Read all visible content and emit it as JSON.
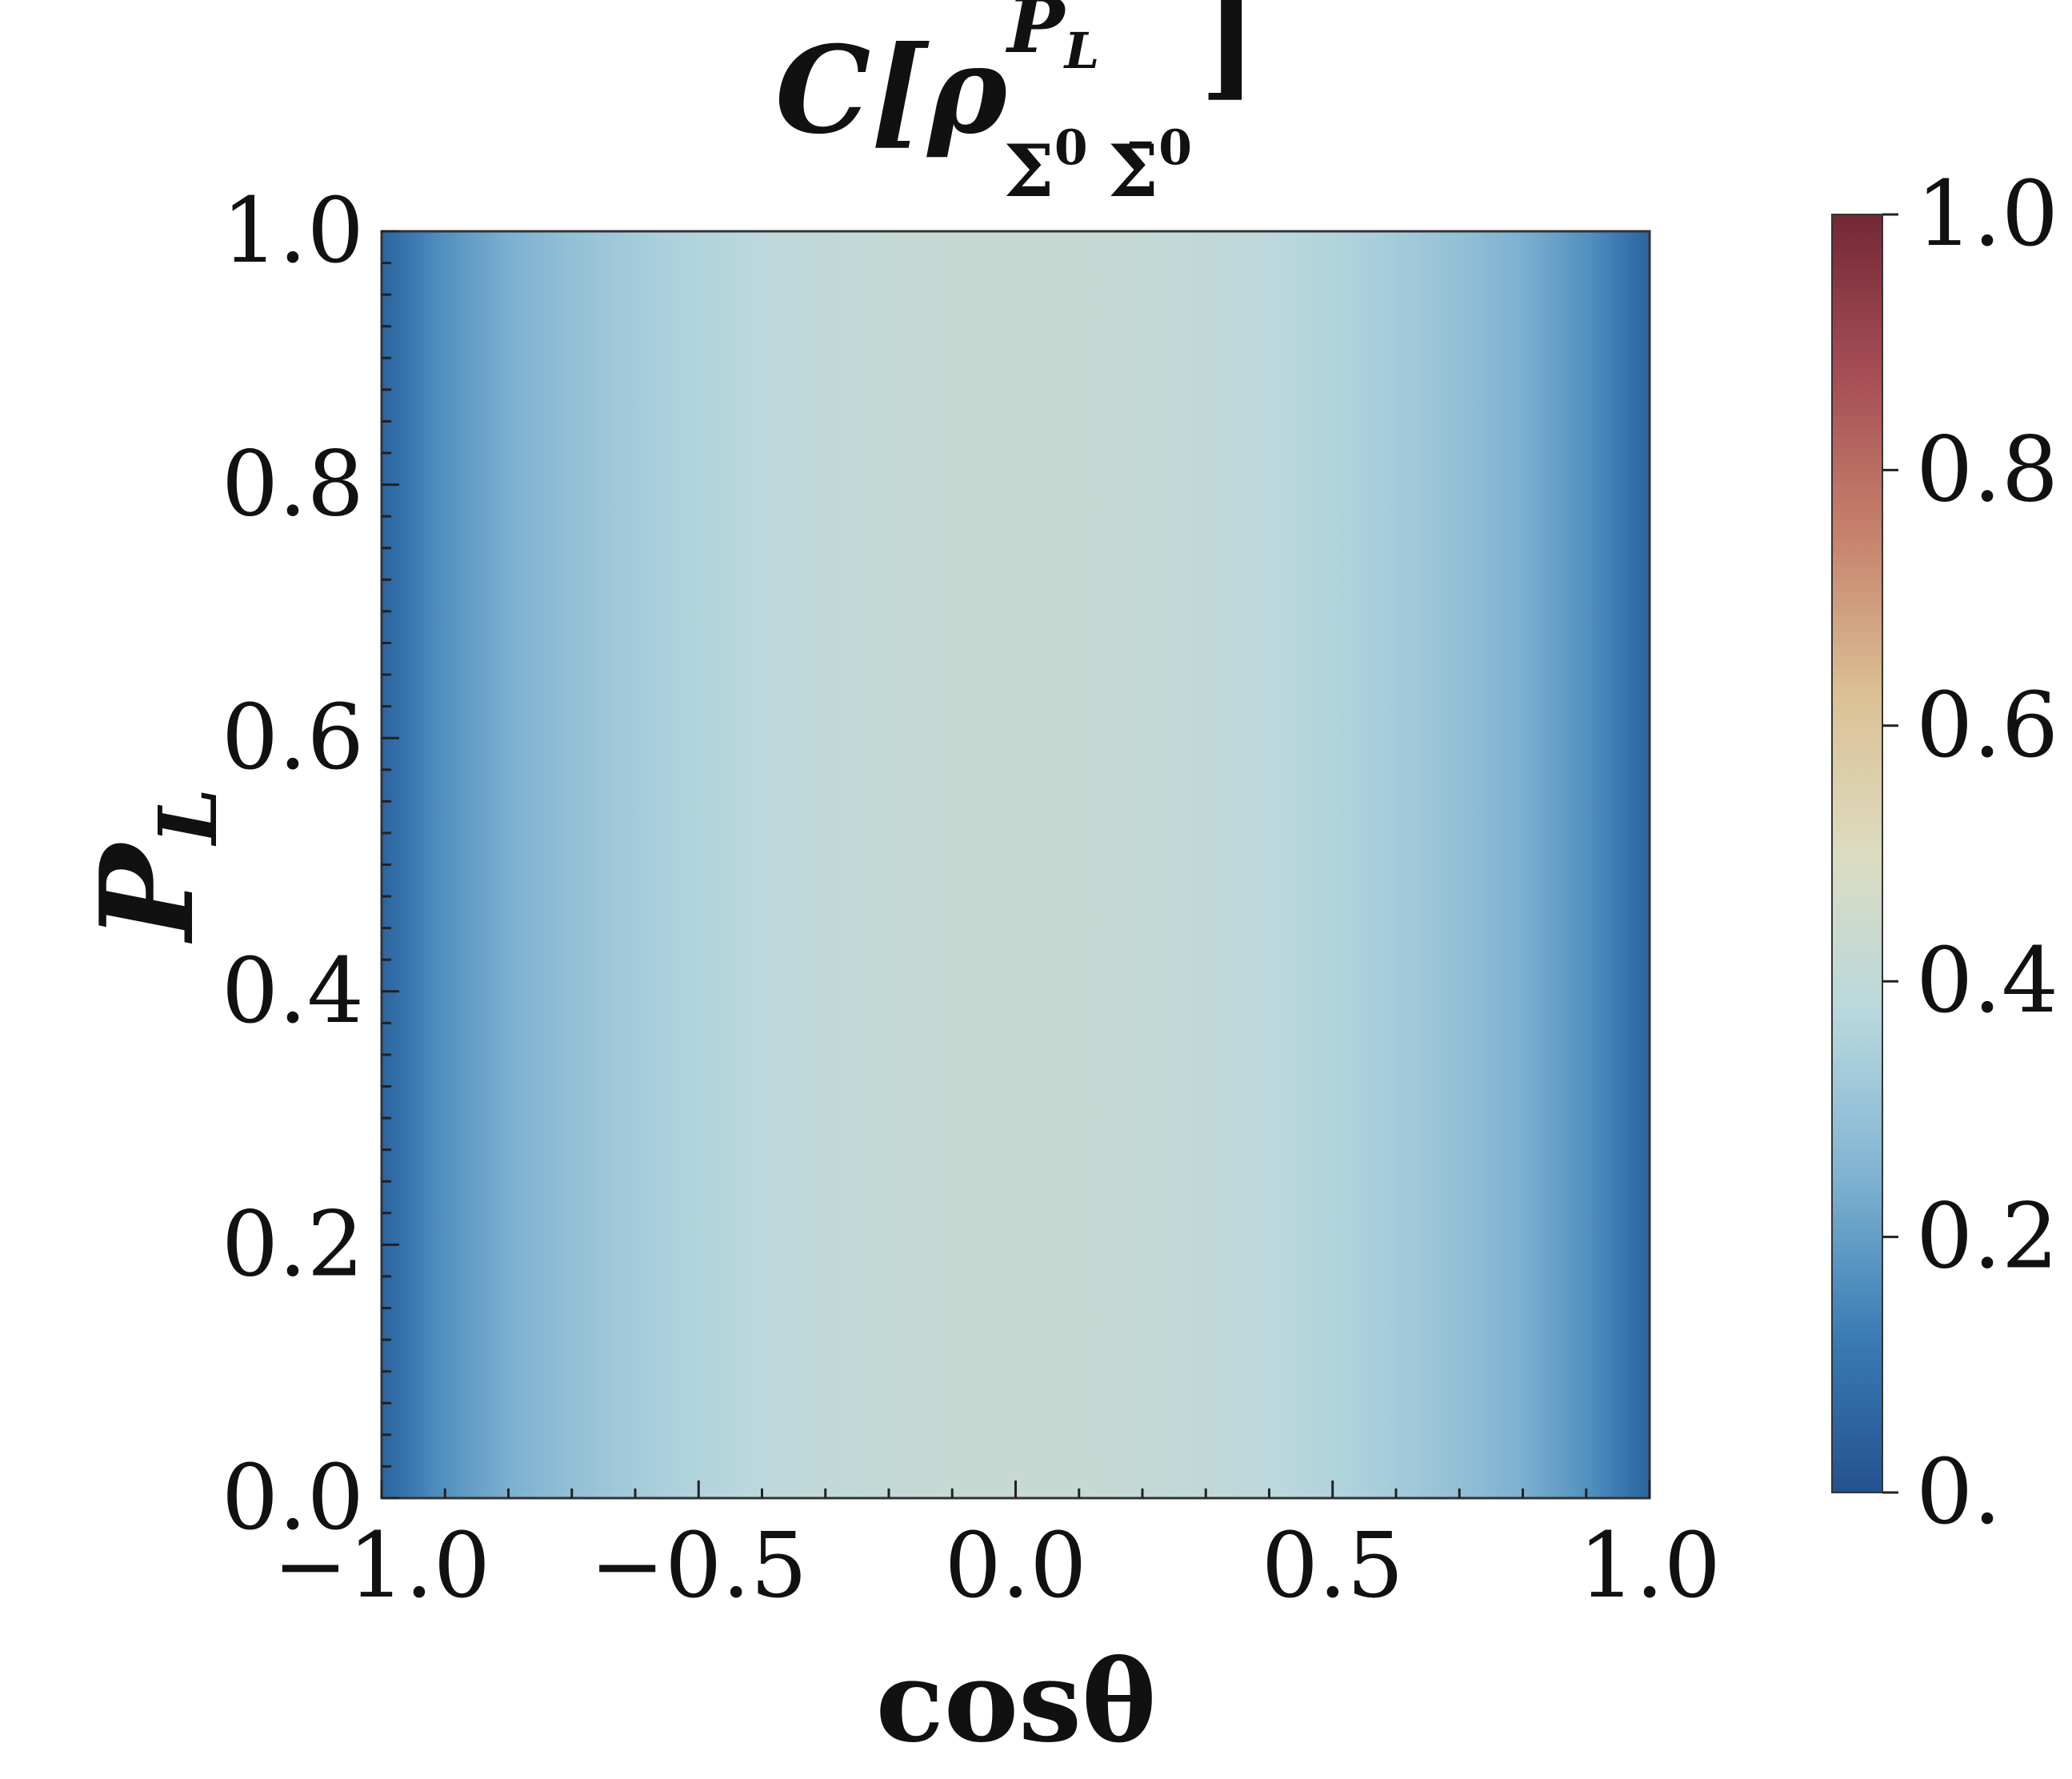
{
  "chart_data": {
    "type": "heatmap",
    "title": {
      "main": "C[ρ",
      "superscript": "P",
      "superscript_sub": "L",
      "subscript_a": "Σ",
      "subscript_a_sup": "0",
      "subscript_b": "Σ̄",
      "subscript_b_sup": "0",
      "close": "]"
    },
    "xlabel": "cosθ",
    "ylabel": {
      "main": "P",
      "sub": "L"
    },
    "xlim": [
      -1.0,
      1.0
    ],
    "ylim": [
      0.0,
      1.0
    ],
    "x_ticks": [
      -1.0,
      -0.5,
      0.0,
      0.5,
      1.0
    ],
    "x_tick_labels": [
      "−1.0",
      "−0.5",
      "0.0",
      "0.5",
      "1.0"
    ],
    "y_ticks": [
      0.0,
      0.2,
      0.4,
      0.6,
      0.8,
      1.0
    ],
    "y_tick_labels": [
      "0.0",
      "0.2",
      "0.4",
      "0.6",
      "0.8",
      "1.0"
    ],
    "x": [
      -1.0,
      -0.95,
      -0.9,
      -0.8,
      -0.7,
      -0.6,
      -0.5,
      -0.4,
      -0.3,
      -0.2,
      -0.1,
      0.0,
      0.1,
      0.2,
      0.3,
      0.4,
      0.5,
      0.6,
      0.7,
      0.8,
      0.9,
      0.95,
      1.0
    ],
    "values": [
      0.05,
      0.12,
      0.17,
      0.24,
      0.29,
      0.33,
      0.36,
      0.385,
      0.4,
      0.41,
      0.42,
      0.42,
      0.42,
      0.41,
      0.4,
      0.385,
      0.36,
      0.33,
      0.29,
      0.24,
      0.17,
      0.12,
      0.05
    ],
    "note_values": "C depends only on cosθ; constant along P_L",
    "colorbar": {
      "colormap": "RdYlBu_r",
      "range": [
        0.0,
        1.0
      ],
      "ticks": [
        0.0,
        0.2,
        0.4,
        0.6,
        0.8,
        1.0
      ],
      "tick_labels": [
        "0.",
        "0.2",
        "0.4",
        "0.6",
        "0.8",
        "1.0"
      ],
      "colors": [
        "#24528f",
        "#3b7db5",
        "#81b4d2",
        "#b9d8de",
        "#dcdcc0",
        "#dcc094",
        "#c6816c",
        "#a64e55",
        "#732836"
      ]
    },
    "grid": false
  }
}
